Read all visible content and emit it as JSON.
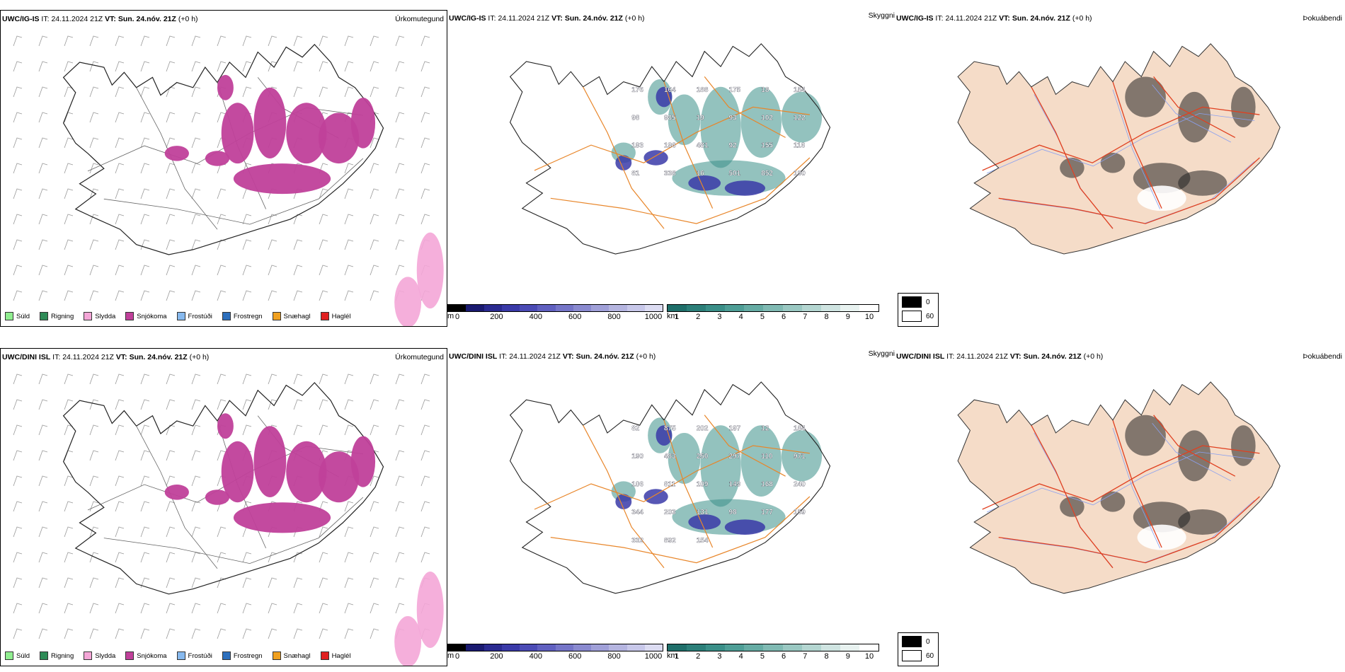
{
  "rows": [
    {
      "model": "UWC/IG-IS",
      "init_label": "IT:",
      "init_time": "24.11.2024 21Z",
      "valid_label": "VT:",
      "valid_time": "Sun. 24.nóv. 21Z",
      "offset": "(+0 h)",
      "precip_title": "Úrkomutegund",
      "cloud_title": "Skyggni",
      "fog_title": "Þokuábendi",
      "height_labels": [
        "176",
        "164",
        "188",
        "175",
        "18",
        "154",
        "98",
        "985",
        "19",
        "93",
        "102",
        "122",
        "193",
        "196",
        "481",
        "92",
        "155",
        "116",
        "81",
        "338",
        "16",
        "501",
        "852",
        "190"
      ]
    },
    {
      "model": "UWC/DINI ISL",
      "init_label": "IT:",
      "init_time": "24.11.2024 21Z",
      "valid_label": "VT:",
      "valid_time": "Sun. 24.nóv. 21Z",
      "offset": "(+0 h)",
      "precip_title": "Úrkomutegund",
      "cloud_title": "Skyggni",
      "fog_title": "Þokuábendi",
      "height_labels": [
        "82",
        "875",
        "202",
        "197",
        "12",
        "184",
        "190",
        "483",
        "250",
        "297",
        "110",
        "971",
        "106",
        "811",
        "109",
        "149",
        "168",
        "240",
        "344",
        "203",
        "131",
        "98",
        "177",
        "159",
        "332",
        "892",
        "154"
      ]
    }
  ],
  "precip_legend": [
    {
      "label": "Súld",
      "color": "#90ee90"
    },
    {
      "label": "Rigning",
      "color": "#2e8b57"
    },
    {
      "label": "Slydda",
      "color": "#f4a6d7"
    },
    {
      "label": "Snjókoma",
      "color": "#c0409a"
    },
    {
      "label": "Frostúði",
      "color": "#87b9ee"
    },
    {
      "label": "Frostregn",
      "color": "#2c6fbd"
    },
    {
      "label": "Snæhagl",
      "color": "#f0a020"
    },
    {
      "label": "Haglél",
      "color": "#e02020"
    }
  ],
  "cloud_base_bar": {
    "unit": "m",
    "ticks": [
      "0",
      "200",
      "400",
      "600",
      "800",
      "1000"
    ],
    "colors": [
      "#000000",
      "#1a1a70",
      "#2a2a90",
      "#3a3aa8",
      "#4b4bb5",
      "#6060c0",
      "#7575c8",
      "#8a8ad0",
      "#a0a0d8",
      "#b5b5e0",
      "#c8c8ea",
      "#dcdcf2"
    ]
  },
  "visibility_bar": {
    "unit": "km",
    "ticks": [
      "1",
      "2",
      "3",
      "4",
      "5",
      "6",
      "7",
      "8",
      "9",
      "10"
    ],
    "colors": [
      "#1f6f6a",
      "#2c7f79",
      "#3a8f88",
      "#4e9e96",
      "#66aca4",
      "#80bab3",
      "#9ac8c2",
      "#b4d6d1",
      "#cfe4e1",
      "#e8f2f0",
      "#ffffff"
    ]
  },
  "fog_legend": [
    {
      "label": "0",
      "color": "#000000"
    },
    {
      "label": "60",
      "color": "#ffffff"
    }
  ],
  "colors": {
    "snow": "#c0409a",
    "sleet": "#f4a6d7",
    "teal": "#3a8f88",
    "blue": "#3a3aa8",
    "roads_orange": "#e8862a",
    "roads_red": "#e04020",
    "land_peach": "#f5dcc8",
    "rivers": "#8aa0f0"
  }
}
